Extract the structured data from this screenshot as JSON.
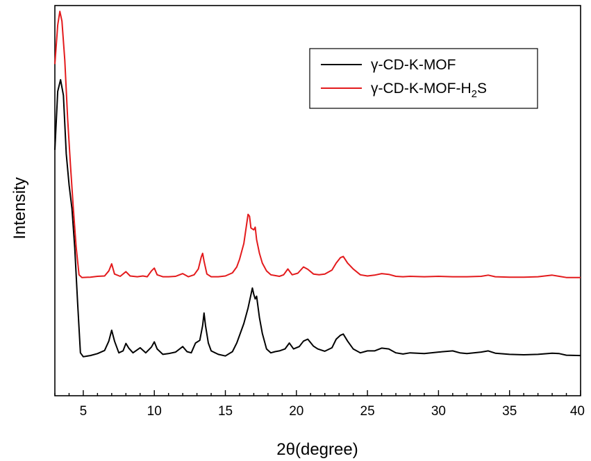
{
  "chart_data": {
    "type": "line",
    "xlabel": "2θ(degree)",
    "ylabel": "Intensity",
    "xlim": [
      3,
      40
    ],
    "ylim": [
      0,
      100
    ],
    "xticks": [
      5,
      10,
      15,
      20,
      25,
      30,
      35,
      40
    ],
    "y_tick_labels": "none",
    "grid": false,
    "legend_position": "top-right",
    "series": [
      {
        "name": "γ-CD-K-MOF",
        "legend_label": {
          "prefix": "γ-CD-K-MOF",
          "sub": "",
          "suffix": ""
        },
        "color": "#000000",
        "points": [
          [
            3.0,
            63
          ],
          [
            3.2,
            78
          ],
          [
            3.4,
            81
          ],
          [
            3.6,
            77
          ],
          [
            3.8,
            62
          ],
          [
            4.0,
            54
          ],
          [
            4.2,
            48
          ],
          [
            4.4,
            38
          ],
          [
            4.6,
            24
          ],
          [
            4.8,
            11
          ],
          [
            5.0,
            10
          ],
          [
            5.5,
            10.3
          ],
          [
            6.0,
            10.8
          ],
          [
            6.5,
            11.6
          ],
          [
            6.8,
            14
          ],
          [
            7.0,
            16.8
          ],
          [
            7.2,
            14
          ],
          [
            7.5,
            11
          ],
          [
            7.8,
            11.5
          ],
          [
            8.0,
            13.4
          ],
          [
            8.2,
            12.2
          ],
          [
            8.5,
            11
          ],
          [
            9.0,
            12.3
          ],
          [
            9.4,
            11
          ],
          [
            9.8,
            12.5
          ],
          [
            10.0,
            13.8
          ],
          [
            10.2,
            12
          ],
          [
            10.6,
            10.6
          ],
          [
            11.0,
            10.8
          ],
          [
            11.5,
            11.2
          ],
          [
            12.0,
            12.6
          ],
          [
            12.3,
            11.3
          ],
          [
            12.6,
            11
          ],
          [
            12.9,
            13.5
          ],
          [
            13.2,
            14.2
          ],
          [
            13.4,
            18
          ],
          [
            13.5,
            21.2
          ],
          [
            13.6,
            18
          ],
          [
            13.8,
            13.5
          ],
          [
            14.0,
            11.5
          ],
          [
            14.5,
            10.6
          ],
          [
            15.0,
            10.2
          ],
          [
            15.5,
            11.3
          ],
          [
            15.8,
            13.5
          ],
          [
            16.0,
            15.5
          ],
          [
            16.3,
            18.5
          ],
          [
            16.6,
            22.5
          ],
          [
            16.9,
            27.6
          ],
          [
            17.0,
            26
          ],
          [
            17.1,
            24.8
          ],
          [
            17.2,
            25.5
          ],
          [
            17.4,
            20
          ],
          [
            17.6,
            16
          ],
          [
            17.9,
            12
          ],
          [
            18.2,
            11
          ],
          [
            18.5,
            11.3
          ],
          [
            18.8,
            11.5
          ],
          [
            19.2,
            12
          ],
          [
            19.5,
            13.5
          ],
          [
            19.8,
            12
          ],
          [
            20.2,
            12.6
          ],
          [
            20.5,
            14
          ],
          [
            20.8,
            14.5
          ],
          [
            21.2,
            12.7
          ],
          [
            21.5,
            12
          ],
          [
            22.0,
            11.4
          ],
          [
            22.5,
            12.3
          ],
          [
            22.8,
            14.5
          ],
          [
            23.1,
            15.5
          ],
          [
            23.3,
            15.8
          ],
          [
            23.6,
            14
          ],
          [
            24.0,
            12
          ],
          [
            24.5,
            11
          ],
          [
            25.0,
            11.5
          ],
          [
            25.5,
            11.5
          ],
          [
            26.0,
            12.2
          ],
          [
            26.5,
            12
          ],
          [
            27.0,
            11
          ],
          [
            27.5,
            10.7
          ],
          [
            28.0,
            11
          ],
          [
            29.0,
            10.8
          ],
          [
            30.0,
            11.2
          ],
          [
            31.0,
            11.5
          ],
          [
            31.5,
            11
          ],
          [
            32.0,
            10.8
          ],
          [
            33.0,
            11.2
          ],
          [
            33.5,
            11.5
          ],
          [
            34.0,
            10.9
          ],
          [
            35.0,
            10.6
          ],
          [
            36.0,
            10.5
          ],
          [
            37.0,
            10.6
          ],
          [
            38.0,
            10.9
          ],
          [
            38.5,
            10.8
          ],
          [
            39.0,
            10.4
          ],
          [
            40.0,
            10.3
          ]
        ]
      },
      {
        "name": "γ-CD-K-MOF-H₂S",
        "legend_label": {
          "prefix": "γ-CD-K-MOF-H",
          "sub": "2",
          "suffix": "S"
        },
        "color": "#e31a1c",
        "points": [
          [
            3.0,
            85
          ],
          [
            3.2,
            95
          ],
          [
            3.35,
            98.5
          ],
          [
            3.5,
            96
          ],
          [
            3.7,
            86
          ],
          [
            3.9,
            71
          ],
          [
            4.1,
            59
          ],
          [
            4.3,
            48
          ],
          [
            4.5,
            38
          ],
          [
            4.7,
            31
          ],
          [
            4.9,
            30.3
          ],
          [
            5.5,
            30.4
          ],
          [
            6.0,
            30.6
          ],
          [
            6.5,
            30.7
          ],
          [
            6.8,
            32
          ],
          [
            7.0,
            33.8
          ],
          [
            7.2,
            31.2
          ],
          [
            7.6,
            30.6
          ],
          [
            8.0,
            31.8
          ],
          [
            8.3,
            30.7
          ],
          [
            8.8,
            30.5
          ],
          [
            9.2,
            30.7
          ],
          [
            9.5,
            30.5
          ],
          [
            9.8,
            32
          ],
          [
            10.0,
            32.7
          ],
          [
            10.2,
            31
          ],
          [
            10.6,
            30.5
          ],
          [
            11.0,
            30.5
          ],
          [
            11.5,
            30.6
          ],
          [
            12.0,
            31.3
          ],
          [
            12.4,
            30.5
          ],
          [
            12.8,
            31
          ],
          [
            13.1,
            32.5
          ],
          [
            13.3,
            35.5
          ],
          [
            13.4,
            36.5
          ],
          [
            13.5,
            34.5
          ],
          [
            13.7,
            31.2
          ],
          [
            14.0,
            30.5
          ],
          [
            14.5,
            30.5
          ],
          [
            15.0,
            30.7
          ],
          [
            15.5,
            31.5
          ],
          [
            15.8,
            33
          ],
          [
            16.0,
            35
          ],
          [
            16.3,
            39
          ],
          [
            16.6,
            46.5
          ],
          [
            16.7,
            46
          ],
          [
            16.8,
            43
          ],
          [
            17.0,
            42.5
          ],
          [
            17.1,
            43.2
          ],
          [
            17.2,
            40
          ],
          [
            17.4,
            36.5
          ],
          [
            17.6,
            34
          ],
          [
            17.9,
            32
          ],
          [
            18.2,
            31
          ],
          [
            18.5,
            30.8
          ],
          [
            18.8,
            30.6
          ],
          [
            19.1,
            31
          ],
          [
            19.4,
            32.5
          ],
          [
            19.7,
            31
          ],
          [
            20.1,
            31.4
          ],
          [
            20.5,
            33
          ],
          [
            20.8,
            32.4
          ],
          [
            21.2,
            31.2
          ],
          [
            21.6,
            31
          ],
          [
            22.0,
            31.2
          ],
          [
            22.5,
            32.2
          ],
          [
            22.8,
            34
          ],
          [
            23.1,
            35.4
          ],
          [
            23.3,
            35.7
          ],
          [
            23.6,
            34
          ],
          [
            24.0,
            32.5
          ],
          [
            24.5,
            31
          ],
          [
            25.0,
            30.7
          ],
          [
            25.5,
            30.9
          ],
          [
            26.0,
            31.3
          ],
          [
            26.5,
            31.1
          ],
          [
            27.0,
            30.6
          ],
          [
            27.5,
            30.5
          ],
          [
            28.0,
            30.6
          ],
          [
            29.0,
            30.5
          ],
          [
            30.0,
            30.6
          ],
          [
            31.0,
            30.5
          ],
          [
            32.0,
            30.5
          ],
          [
            33.0,
            30.6
          ],
          [
            33.5,
            30.9
          ],
          [
            34.0,
            30.5
          ],
          [
            35.0,
            30.4
          ],
          [
            36.0,
            30.4
          ],
          [
            37.0,
            30.5
          ],
          [
            38.0,
            30.9
          ],
          [
            38.5,
            30.6
          ],
          [
            39.0,
            30.3
          ],
          [
            40.0,
            30.3
          ]
        ]
      }
    ]
  }
}
